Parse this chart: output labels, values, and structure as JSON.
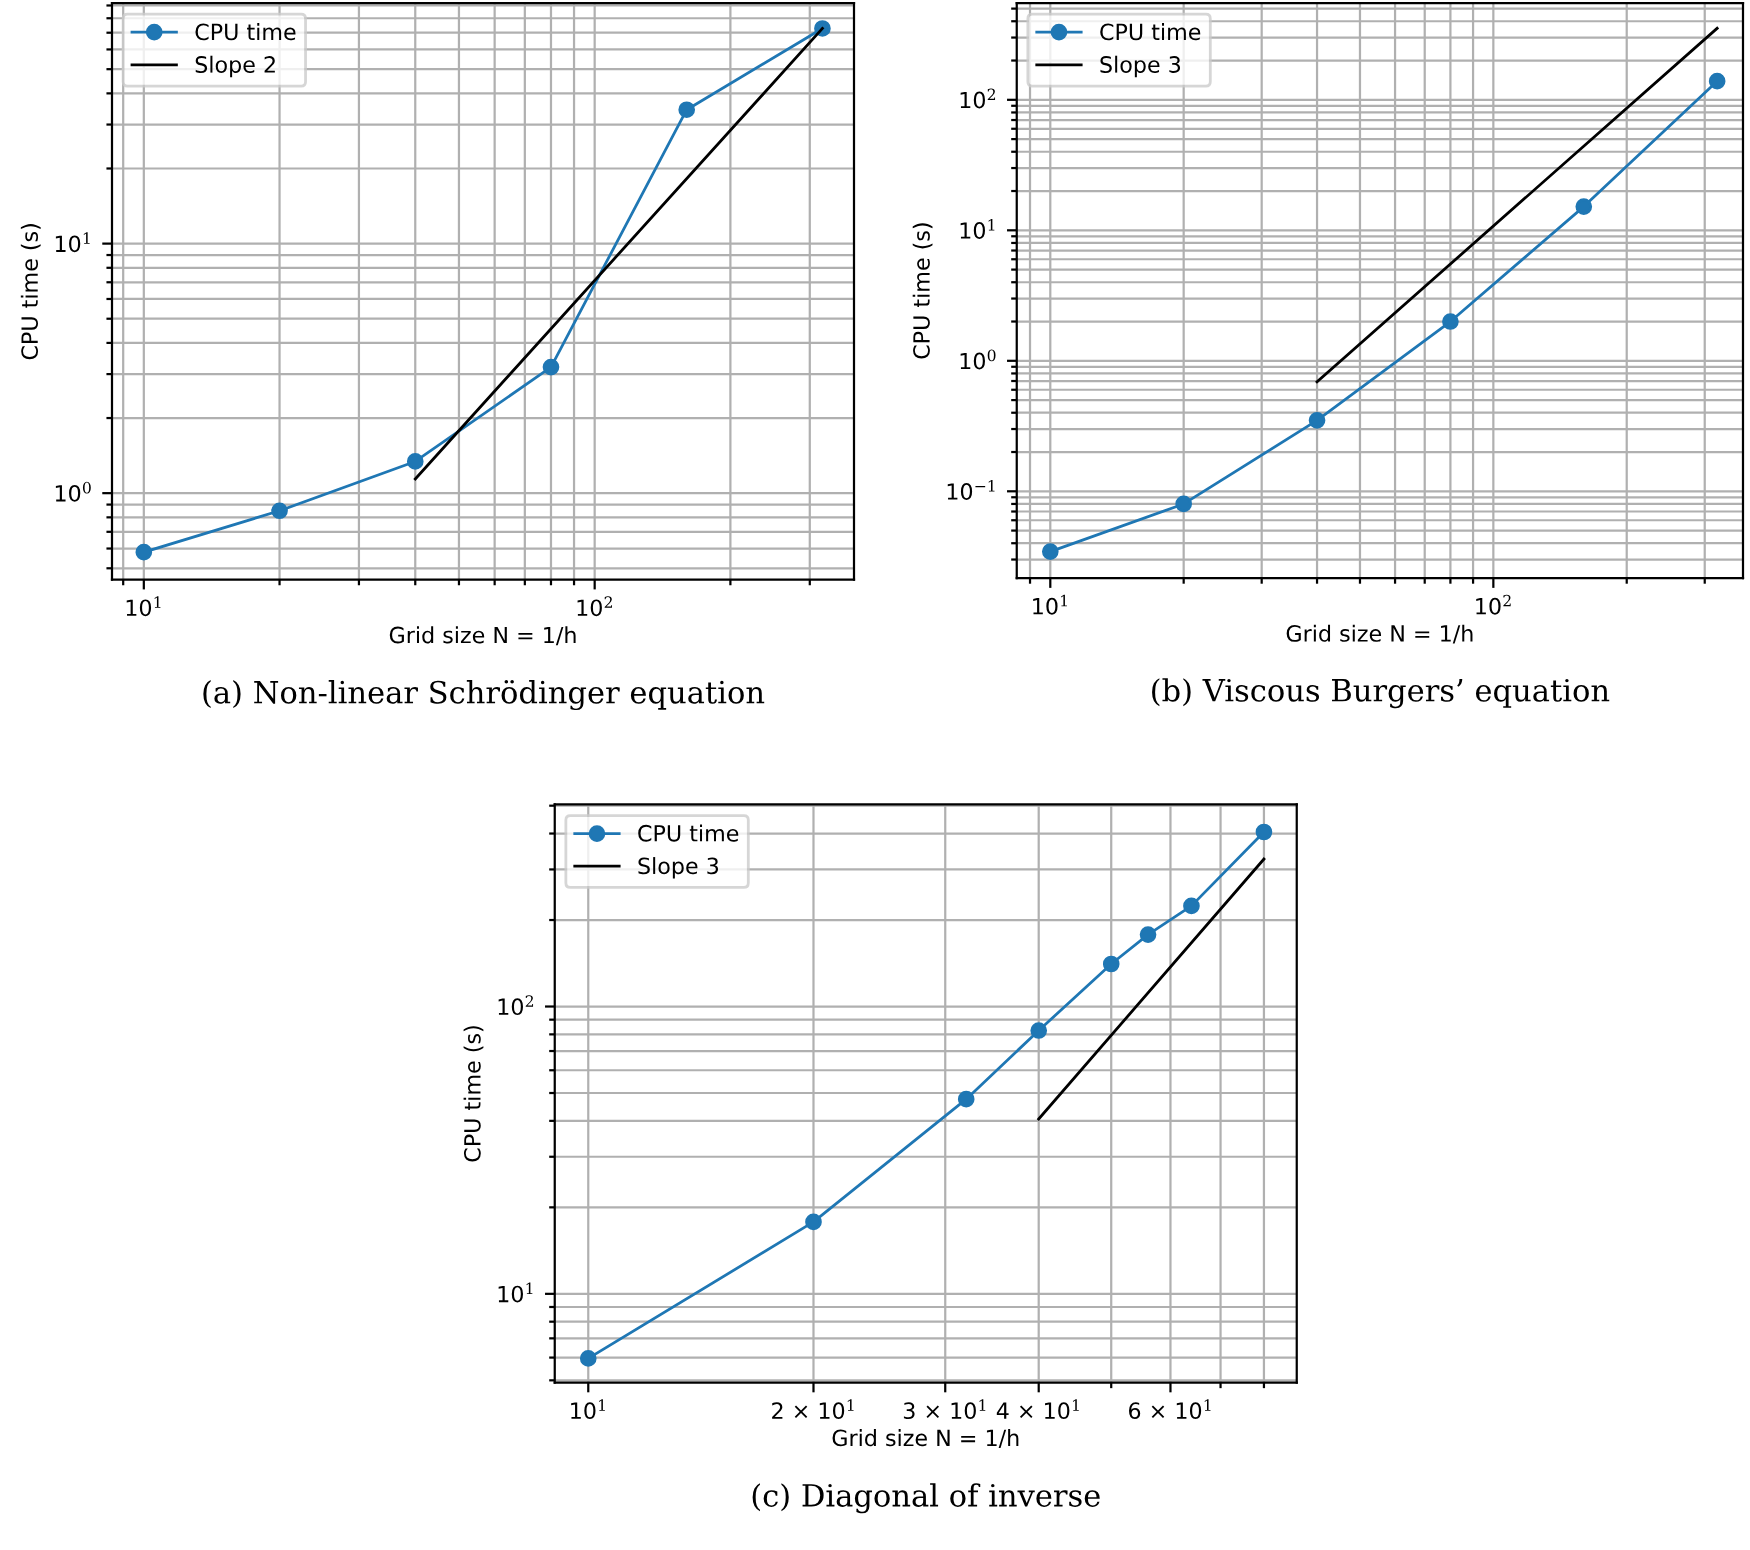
{
  "chart_data": [
    {
      "type": "line",
      "title": "(a) Non-linear Schrödinger equation",
      "xlabel": "Grid size N = 1/h",
      "ylabel": "CPU time (s)",
      "log": "xy",
      "grid": true,
      "legend": "top left",
      "xlim": [
        8.5,
        376
      ],
      "ylim": [
        0.45,
        92
      ],
      "xticks": [
        {
          "value": 9,
          "label": null
        },
        {
          "value": 10,
          "label": "10$^{1}$"
        },
        {
          "value": 20,
          "label": null
        },
        {
          "value": 30,
          "label": null
        },
        {
          "value": 40,
          "label": null
        },
        {
          "value": 50,
          "label": null
        },
        {
          "value": 60,
          "label": null
        },
        {
          "value": 70,
          "label": null
        },
        {
          "value": 80,
          "label": null
        },
        {
          "value": 90,
          "label": null
        },
        {
          "value": 100,
          "label": "10$^{2}$"
        },
        {
          "value": 200,
          "label": null
        },
        {
          "value": 300,
          "label": null
        }
      ],
      "yticks": [
        {
          "value": 0.5,
          "label": null
        },
        {
          "value": 0.6,
          "label": null
        },
        {
          "value": 0.7,
          "label": null
        },
        {
          "value": 0.8,
          "label": null
        },
        {
          "value": 0.9,
          "label": null
        },
        {
          "value": 1,
          "label": "10$^{0}$"
        },
        {
          "value": 2,
          "label": null
        },
        {
          "value": 3,
          "label": null
        },
        {
          "value": 4,
          "label": null
        },
        {
          "value": 5,
          "label": null
        },
        {
          "value": 6,
          "label": null
        },
        {
          "value": 7,
          "label": null
        },
        {
          "value": 8,
          "label": null
        },
        {
          "value": 9,
          "label": null
        },
        {
          "value": 10,
          "label": "10$^{1}$"
        },
        {
          "value": 20,
          "label": null
        },
        {
          "value": 30,
          "label": null
        },
        {
          "value": 40,
          "label": null
        },
        {
          "value": 50,
          "label": null
        },
        {
          "value": 60,
          "label": null
        },
        {
          "value": 70,
          "label": null
        },
        {
          "value": 80,
          "label": null
        },
        {
          "value": 90,
          "label": null
        }
      ],
      "series": [
        {
          "name": "CPU time",
          "color": "#1f77b4",
          "marker": "circle",
          "x": [
            10,
            20,
            40,
            80,
            160,
            320
          ],
          "values": [
            0.58,
            0.85,
            1.34,
            3.2,
            34.4,
            72.8
          ]
        },
        {
          "name": "Slope 2",
          "color": "#000000",
          "marker": "none",
          "x": [
            40,
            320
          ],
          "values": [
            1.14,
            72.8
          ]
        }
      ]
    },
    {
      "type": "line",
      "title": "(b) Viscous Burgers’ equation",
      "xlabel": "Grid size N = 1/h",
      "ylabel": "CPU time (s)",
      "log": "xy",
      "grid": true,
      "legend": "top left",
      "xlim": [
        8.4,
        366
      ],
      "ylim": [
        0.0216,
        551
      ],
      "xticks": [
        {
          "value": 9,
          "label": null
        },
        {
          "value": 10,
          "label": "10$^{1}$"
        },
        {
          "value": 20,
          "label": null
        },
        {
          "value": 30,
          "label": null
        },
        {
          "value": 40,
          "label": null
        },
        {
          "value": 50,
          "label": null
        },
        {
          "value": 60,
          "label": null
        },
        {
          "value": 70,
          "label": null
        },
        {
          "value": 80,
          "label": null
        },
        {
          "value": 90,
          "label": null
        },
        {
          "value": 100,
          "label": "10$^{2}$"
        },
        {
          "value": 200,
          "label": null
        },
        {
          "value": 300,
          "label": null
        }
      ],
      "yticks": [
        {
          "value": 0.03,
          "label": null
        },
        {
          "value": 0.04,
          "label": null
        },
        {
          "value": 0.05,
          "label": null
        },
        {
          "value": 0.06,
          "label": null
        },
        {
          "value": 0.07,
          "label": null
        },
        {
          "value": 0.08,
          "label": null
        },
        {
          "value": 0.09,
          "label": null
        },
        {
          "value": 0.1,
          "label": "10$^{−1}$"
        },
        {
          "value": 0.2,
          "label": null
        },
        {
          "value": 0.3,
          "label": null
        },
        {
          "value": 0.4,
          "label": null
        },
        {
          "value": 0.5,
          "label": null
        },
        {
          "value": 0.6,
          "label": null
        },
        {
          "value": 0.7,
          "label": null
        },
        {
          "value": 0.8,
          "label": null
        },
        {
          "value": 0.9,
          "label": null
        },
        {
          "value": 1,
          "label": "10$^{0}$"
        },
        {
          "value": 2,
          "label": null
        },
        {
          "value": 3,
          "label": null
        },
        {
          "value": 4,
          "label": null
        },
        {
          "value": 5,
          "label": null
        },
        {
          "value": 6,
          "label": null
        },
        {
          "value": 7,
          "label": null
        },
        {
          "value": 8,
          "label": null
        },
        {
          "value": 9,
          "label": null
        },
        {
          "value": 10,
          "label": "10$^{1}$"
        },
        {
          "value": 20,
          "label": null
        },
        {
          "value": 30,
          "label": null
        },
        {
          "value": 40,
          "label": null
        },
        {
          "value": 50,
          "label": null
        },
        {
          "value": 60,
          "label": null
        },
        {
          "value": 70,
          "label": null
        },
        {
          "value": 80,
          "label": null
        },
        {
          "value": 90,
          "label": null
        },
        {
          "value": 100,
          "label": "10$^{2}$"
        },
        {
          "value": 200,
          "label": null
        },
        {
          "value": 300,
          "label": null
        },
        {
          "value": 400,
          "label": null
        },
        {
          "value": 500,
          "label": null
        }
      ],
      "series": [
        {
          "name": "CPU time",
          "color": "#1f77b4",
          "marker": "circle",
          "x": [
            10,
            20,
            40,
            80,
            160,
            320
          ],
          "values": [
            0.0345,
            0.08,
            0.35,
            2.0,
            15.2,
            139
          ]
        },
        {
          "name": "Slope 3",
          "color": "#000000",
          "marker": "none",
          "x": [
            40,
            320
          ],
          "values": [
            0.69,
            353
          ]
        }
      ]
    },
    {
      "type": "line",
      "title": "(c) Diagonal of inverse",
      "xlabel": "Grid size N = 1/h",
      "ylabel": "CPU time (s)",
      "log": "xy",
      "grid": true,
      "legend": "top left",
      "xlim": [
        9.02,
        88.5
      ],
      "ylim": [
        4.91,
        505
      ],
      "xticks": [
        {
          "value": 10,
          "label": "10$^{1}$"
        },
        {
          "value": 20,
          "label": "2 × 10$^{1}$"
        },
        {
          "value": 30,
          "label": "3 × 10$^{1}$"
        },
        {
          "value": 40,
          "label": "4 × 10$^{1}$"
        },
        {
          "value": 50,
          "label": null
        },
        {
          "value": 60,
          "label": "6 × 10$^{1}$"
        },
        {
          "value": 70,
          "label": null
        },
        {
          "value": 80,
          "label": null
        }
      ],
      "yticks": [
        {
          "value": 5,
          "label": null
        },
        {
          "value": 6,
          "label": null
        },
        {
          "value": 7,
          "label": null
        },
        {
          "value": 8,
          "label": null
        },
        {
          "value": 9,
          "label": null
        },
        {
          "value": 10,
          "label": "10$^{1}$"
        },
        {
          "value": 20,
          "label": null
        },
        {
          "value": 30,
          "label": null
        },
        {
          "value": 40,
          "label": null
        },
        {
          "value": 50,
          "label": null
        },
        {
          "value": 60,
          "label": null
        },
        {
          "value": 70,
          "label": null
        },
        {
          "value": 80,
          "label": null
        },
        {
          "value": 90,
          "label": null
        },
        {
          "value": 100,
          "label": "10$^{2}$"
        },
        {
          "value": 200,
          "label": null
        },
        {
          "value": 300,
          "label": null
        },
        {
          "value": 400,
          "label": null
        },
        {
          "value": 500,
          "label": null
        }
      ],
      "series": [
        {
          "name": "CPU time",
          "color": "#1f77b4",
          "marker": "circle",
          "x": [
            10,
            20,
            32,
            40,
            50,
            56,
            64,
            80
          ],
          "values": [
            5.96,
            17.8,
            47.6,
            82.5,
            140.6,
            178,
            224,
            405
          ]
        },
        {
          "name": "Slope 3",
          "color": "#000000",
          "marker": "none",
          "x": [
            40,
            80
          ],
          "values": [
            40.6,
            326
          ]
        }
      ]
    }
  ]
}
